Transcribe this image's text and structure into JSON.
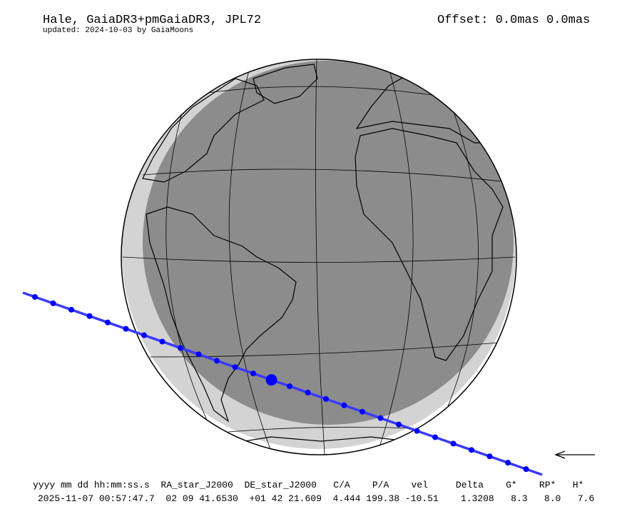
{
  "header": {
    "title": "Hale, GaiaDR3+pmGaiaDR3, JPL72",
    "subtitle": "updated: 2024-10-03 by GaiaMoons",
    "offset": "Offset: 0.0mas 0.0mas"
  },
  "table": {
    "columns": [
      "yyyy mm dd hh:mm:ss.s",
      "RA_star_J2000",
      "DE_star_J2000",
      "C/A",
      "P/A",
      "vel",
      "Delta",
      "G*",
      "RP*",
      "H*"
    ],
    "header_line": "yyyy mm dd hh:mm:ss.s  RA_star_J2000  DE_star_J2000   C/A    P/A    vel     Delta    G*    RP*   H*",
    "values": [
      "2025-11-07 00:57:47.7",
      "02 09 41.6530",
      "+01 42 21.609",
      "4.444",
      "199.38",
      "-10.51",
      "1.3208",
      "8.3",
      "8.0",
      "7.6"
    ],
    "value_line": "2025-11-07 00:57:47.7  02 09 41.6530  +01 42 21.609  4.444 199.38 -10.51    1.3208   8.3   8.0   7.6"
  },
  "map": {
    "colors": {
      "night": "#8c8c8c",
      "twilight": "#d3d3d3",
      "path": "#3a3aff",
      "dot": "#0000ff",
      "outline": "#000000"
    },
    "direction_icon": "arrow-left-icon"
  }
}
